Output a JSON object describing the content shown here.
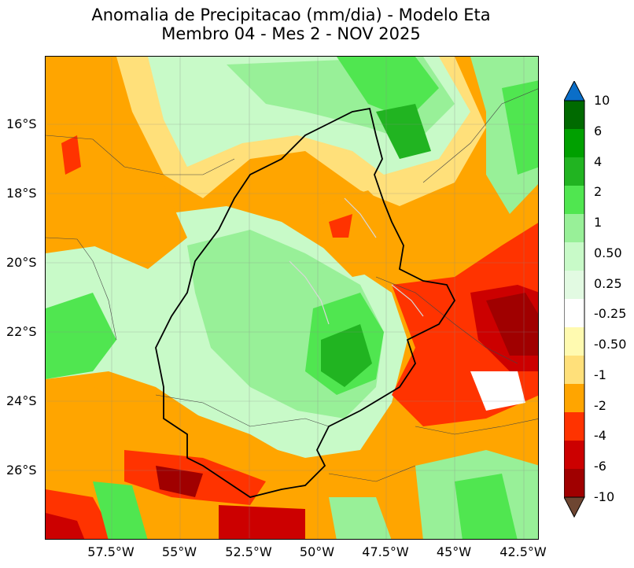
{
  "title": {
    "line1": "Anomalia de Precipitacao (mm/dia) - Modelo Eta",
    "line2": "Membro 04 - Mes 2 - NOV 2025"
  },
  "map": {
    "latitude_ticks": [
      "16°S",
      "18°S",
      "20°S",
      "22°S",
      "24°S",
      "26°S"
    ],
    "longitude_ticks": [
      "57.5°W",
      "55°W",
      "52.5°W",
      "50°W",
      "47.5°W",
      "45°W",
      "42.5°W"
    ],
    "extent": {
      "lon_min": -60,
      "lon_max": -42,
      "lat_min": -28,
      "lat_max": -14
    }
  },
  "colorbar": {
    "labels": [
      "10",
      "6",
      "4",
      "2",
      "1",
      "0.50",
      "0.25",
      "-0.25",
      "-0.50",
      "-1",
      "-2",
      "-4",
      "-6",
      "-10"
    ],
    "colors": [
      "#006a00",
      "#00a000",
      "#21b421",
      "#50e650",
      "#98f098",
      "#c8fac8",
      "#e2fae2",
      "#ffffff",
      "#fffab0",
      "#ffe07a",
      "#ffa500",
      "#ff3300",
      "#cc0000",
      "#a00000"
    ],
    "extend_max_color": "#0a6ec8",
    "extend_min_color": "#6e4632"
  }
}
